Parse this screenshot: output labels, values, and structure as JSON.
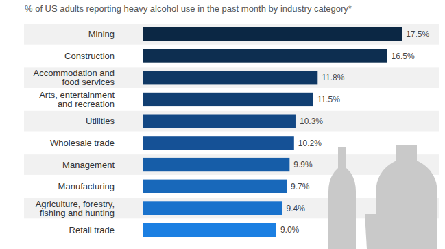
{
  "chart_data": {
    "type": "bar",
    "orientation": "horizontal",
    "subtitle": "% of US adults reporting heavy alcohol use in the past month by industry category*",
    "categories": [
      "Mining",
      "Construction",
      "Accommodation and food services",
      "Arts, entertainment and recreation",
      "Utilities",
      "Wholesale trade",
      "Management",
      "Manufacturing",
      "Agriculture, forestry, fishing and hunting",
      "Retail trade"
    ],
    "values": [
      17.5,
      16.5,
      11.8,
      11.5,
      10.3,
      10.2,
      9.9,
      9.7,
      9.4,
      9.0
    ],
    "value_labels": [
      "17.5%",
      "16.5%",
      "11.8%",
      "11.5%",
      "10.3%",
      "10.2%",
      "9.9%",
      "9.7%",
      "9.4%",
      "9.0%"
    ],
    "colors": [
      "#0b2744",
      "#0d2e50",
      "#0f3864",
      "#113f72",
      "#134884",
      "#155196",
      "#165da8",
      "#1868ba",
      "#1972cc",
      "#1b7fe2"
    ],
    "xlim": [
      0,
      20
    ],
    "data_labels": true,
    "tick_labels": "y",
    "grid": false
  }
}
